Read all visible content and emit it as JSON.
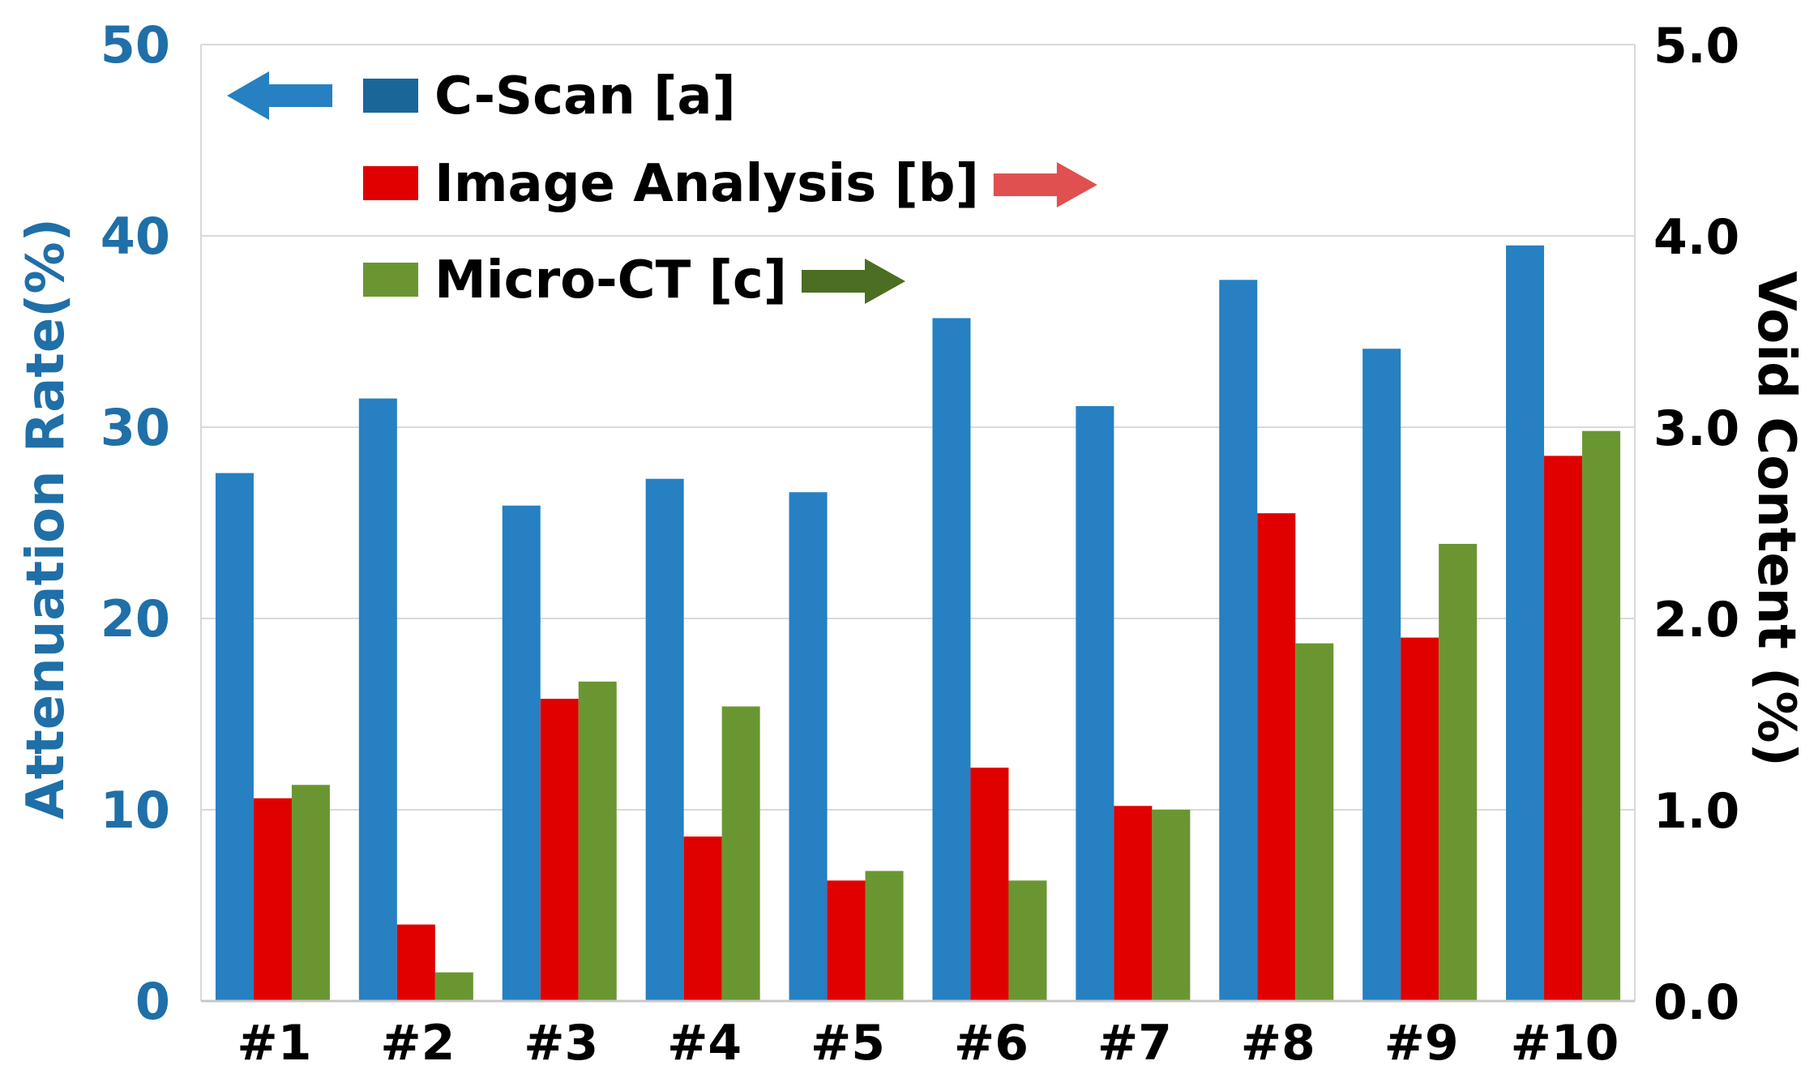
{
  "chart_data": {
    "type": "bar",
    "categories": [
      "#1",
      "#2",
      "#3",
      "#4",
      "#5",
      "#6",
      "#7",
      "#8",
      "#9",
      "#10"
    ],
    "series": [
      {
        "name": "C-Scan [a]",
        "axis": "left",
        "color": "#2680C2",
        "values": [
          27.6,
          31.5,
          25.9,
          27.3,
          26.6,
          35.7,
          31.1,
          37.7,
          34.1,
          39.5
        ]
      },
      {
        "name": "Image Analysis [b]",
        "axis": "right",
        "color": "#E00000",
        "values": [
          1.06,
          0.4,
          1.58,
          0.86,
          0.63,
          1.22,
          1.02,
          2.55,
          1.9,
          2.85
        ]
      },
      {
        "name": "Micro-CT [c]",
        "axis": "right",
        "color": "#6A9632",
        "values": [
          1.13,
          0.15,
          1.67,
          1.54,
          0.68,
          0.63,
          1.0,
          1.87,
          2.39,
          2.98
        ]
      }
    ],
    "left_axis": {
      "label": "Attenuation Rate(%)",
      "ylim": [
        0,
        50
      ],
      "ticks": [
        "0",
        "10",
        "20",
        "30",
        "40",
        "50"
      ],
      "color": "#1F6FA8"
    },
    "right_axis": {
      "label": "Void Content (%)",
      "ylim": [
        0.0,
        5.0
      ],
      "ticks": [
        "0.0",
        "1.0",
        "2.0",
        "3.0",
        "4.0",
        "5.0"
      ],
      "color": "#000000"
    },
    "legend": {
      "placement": "top-left",
      "entries": [
        {
          "series": 0,
          "arrow": "left",
          "arrow_color": "#2680C2",
          "swatch": "#1A6699"
        },
        {
          "series": 1,
          "arrow": "right",
          "arrow_color": "#E05050",
          "swatch": "#E00000"
        },
        {
          "series": 2,
          "arrow": "right",
          "arrow_color": "#4B6E22",
          "swatch": "#6A9632"
        }
      ]
    },
    "grid": "horizontal",
    "grid_color": "#D9D9D9"
  }
}
